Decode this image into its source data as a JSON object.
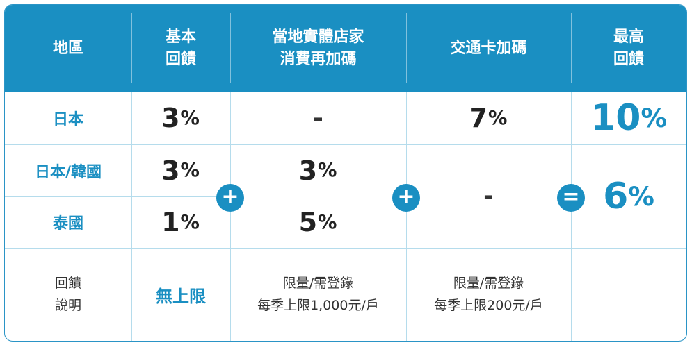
{
  "headers": {
    "region": "地區",
    "basic": "基本\n回饋",
    "local": "當地實體店家\n消費再加碼",
    "transit": "交通卡加碼",
    "max": "最高\n回饋"
  },
  "rows": [
    {
      "region": "日本",
      "basic": "3",
      "local": "-",
      "transit": "7",
      "max": "10"
    },
    {
      "region": "日本/韓國",
      "basic": "3"
    },
    {
      "region": "泰國",
      "basic": "1"
    }
  ],
  "merged": {
    "local_value": "3",
    "local_value_thai": "5",
    "transit": "-",
    "max": "6"
  },
  "pct": "%",
  "operators": {
    "plus": "+",
    "equals": "="
  },
  "notes": {
    "label": "回饋\n說明",
    "basic": "無上限",
    "local": "限量/需登錄\n每季上限1,000元/戶",
    "transit": "限量/需登錄\n每季上限200元/戶"
  },
  "colors": {
    "accent": "#1a8fc2",
    "border": "#b5dcec"
  }
}
